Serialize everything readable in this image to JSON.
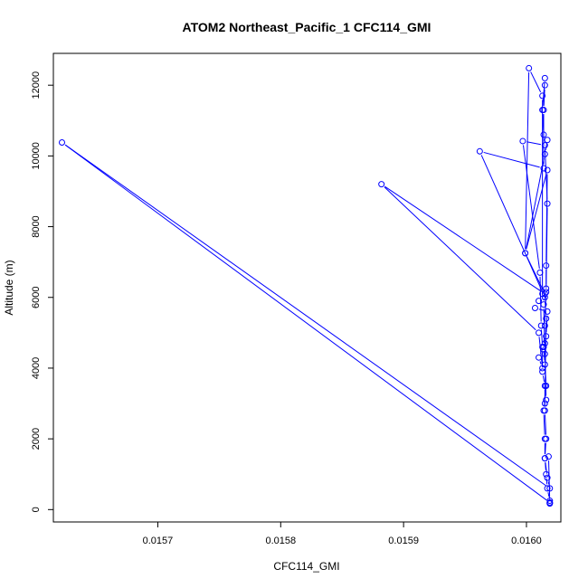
{
  "chart_data": {
    "type": "line",
    "title": "ATOM2 Northeast_Pacific_1 CFC114_GMI",
    "xlabel": "CFC114_GMI",
    "ylabel": "Altitude (m)",
    "xlim": [
      0.015615,
      0.016028
    ],
    "ylim": [
      -350,
      12900
    ],
    "x_ticks": [
      0.0157,
      0.0158,
      0.0159,
      0.016
    ],
    "x_tick_labels": [
      "0.0157",
      "0.0158",
      "0.0159",
      "0.0160"
    ],
    "y_ticks": [
      0,
      2000,
      4000,
      6000,
      8000,
      10000,
      12000
    ],
    "y_tick_labels": [
      "0",
      "2000",
      "4000",
      "6000",
      "8000",
      "10000",
      "12000"
    ],
    "series_color": "#0000ff",
    "markers": "open-circle",
    "x": [
      0.016019,
      0.016019,
      0.016017,
      0.016016,
      0.016015,
      0.016015,
      0.016014,
      0.016016,
      0.016015,
      0.016014,
      0.016015,
      0.016016,
      0.016017,
      0.016015,
      0.015997,
      0.016011,
      0.016012,
      0.016013,
      0.016013,
      0.016015,
      0.016015,
      0.016016,
      0.016015,
      0.015962,
      0.016014,
      0.016014,
      0.016015,
      0.016015,
      0.016013,
      0.016014,
      0.016017,
      0.016015,
      0.015999,
      0.016002,
      0.016013,
      0.016013,
      0.01601,
      0.016007,
      0.016017,
      0.016016,
      0.016015,
      0.016014,
      0.016016,
      0.016016,
      0.016017,
      0.015999,
      0.016015,
      0.015882,
      0.01601,
      0.016013,
      0.01601,
      0.016015,
      0.016016,
      0.016015,
      0.016016,
      0.016015,
      0.016017,
      0.016019,
      0.015622,
      0.016019,
      0.016019,
      0.016018
    ],
    "y": [
      170,
      250,
      600,
      1000,
      1450,
      2000,
      2800,
      3500,
      4100,
      4600,
      5200,
      6150,
      8650,
      10300,
      10420,
      6700,
      5200,
      4600,
      3900,
      3500,
      3000,
      5400,
      6000,
      10130,
      9650,
      11300,
      12000,
      12200,
      11300,
      10600,
      10450,
      10050,
      7250,
      12480,
      11700,
      6100,
      5900,
      5700,
      5600,
      4900,
      4400,
      5800,
      6250,
      6900,
      9600,
      7250,
      6100,
      9200,
      5000,
      4000,
      4300,
      4700,
      3100,
      2800,
      2000,
      1450,
      900,
      600,
      10380,
      200,
      180,
      1500
    ]
  }
}
